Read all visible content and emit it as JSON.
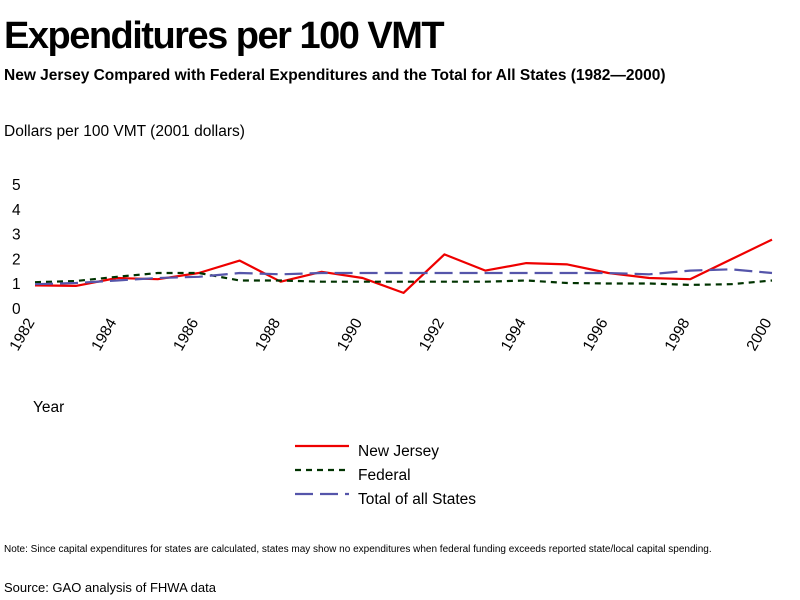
{
  "header": {
    "title": "Expenditures per 100 VMT",
    "subtitle": "New Jersey Compared with Federal Expenditures and the Total for All States (1982—2000)"
  },
  "footer": {
    "note": "Note: Since capital expenditures for states are calculated, states may show no expenditures when federal funding exceeds reported state/local capital spending.",
    "source": "Source: GAO analysis of FHWA data"
  },
  "chart_data": {
    "type": "line",
    "title": "Expenditures per 100 VMT",
    "subtitle": "New Jersey Compared with Federal Expenditures and the Total for All States (1982—2000)",
    "xlabel": "Year",
    "ylabel": "Dollars per 100 VMT (2001 dollars)",
    "ylim": [
      0,
      5
    ],
    "xlim": [
      1982,
      2000
    ],
    "yticks": [
      "0",
      "1",
      "2",
      "3",
      "4",
      "5"
    ],
    "xticks": [
      "1982",
      "1984",
      "1986",
      "1988",
      "1990",
      "1992",
      "1994",
      "1996",
      "1998",
      "2000"
    ],
    "grid": false,
    "legend_position": "bottom-center",
    "x": [
      1982,
      1983,
      1984,
      1985,
      1986,
      1987,
      1988,
      1989,
      1990,
      1991,
      1992,
      1993,
      1994,
      1995,
      1996,
      1997,
      1998,
      1999,
      2000
    ],
    "series": [
      {
        "name": "New Jersey",
        "color": "#ee0000",
        "style": "solid",
        "values": [
          0.95,
          0.93,
          1.25,
          1.2,
          1.45,
          1.95,
          1.1,
          1.5,
          1.25,
          0.65,
          2.2,
          1.55,
          1.85,
          1.8,
          1.45,
          1.25,
          1.2,
          2.0,
          2.8
        ]
      },
      {
        "name": "Federal",
        "color": "#003300",
        "style": "short-dash",
        "values": [
          1.08,
          1.13,
          1.3,
          1.45,
          1.45,
          1.15,
          1.15,
          1.1,
          1.1,
          1.1,
          1.1,
          1.1,
          1.15,
          1.05,
          1.03,
          1.03,
          0.97,
          1.0,
          1.15
        ]
      },
      {
        "name": "Total of all States",
        "color": "#5555aa",
        "style": "long-dash",
        "values": [
          1.0,
          1.05,
          1.15,
          1.25,
          1.3,
          1.45,
          1.4,
          1.45,
          1.45,
          1.45,
          1.45,
          1.45,
          1.45,
          1.45,
          1.45,
          1.4,
          1.55,
          1.6,
          1.45
        ]
      }
    ]
  }
}
